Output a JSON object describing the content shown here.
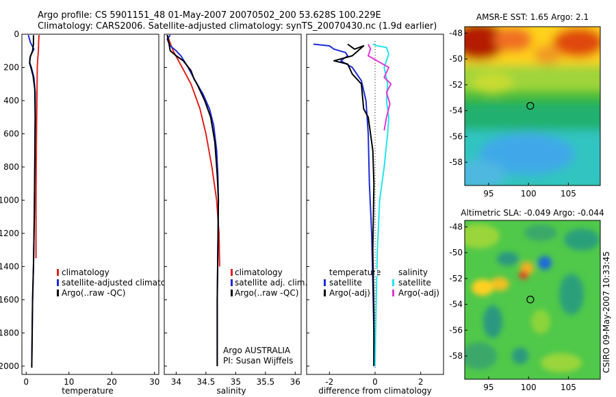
{
  "header": {
    "line1": "Argo profile: CS 5901151_48 01-May-2007 20070502_200 53.628S 100.229E",
    "line2": "Climatology: CARS2006. Satellite-adjusted climatology: synTS_20070430.nc (1.9d earlier)"
  },
  "colors": {
    "climatology": "#e0201a",
    "satellite": "#1a2ad6",
    "argo": "#000000",
    "satellite_salinity": "#22e4ea",
    "argo_adj_salinity": "#e038d8"
  },
  "chart_data": [
    {
      "type": "line",
      "xlabel": "temperature",
      "xlim": [
        -1,
        31
      ],
      "ylim": [
        2050,
        0
      ],
      "xticks": [
        "0",
        "10",
        "20",
        "30"
      ],
      "yticks": [
        "0",
        "200",
        "400",
        "600",
        "800",
        "1000",
        "1200",
        "1400",
        "1600",
        "1800",
        "2000"
      ],
      "legend": [
        "climatology",
        "satellite-adjusted climatology",
        "Argo(..raw -QC)"
      ],
      "series": [
        {
          "name": "climatology",
          "color": "#e0201a",
          "x": [
            3.0,
            2.9,
            2.85,
            2.7,
            2.6,
            2.55,
            2.5,
            2.4,
            2.35,
            2.3,
            2.3,
            2.3
          ],
          "y": [
            5,
            50,
            100,
            150,
            200,
            300,
            400,
            600,
            800,
            1000,
            1200,
            1350
          ]
        },
        {
          "name": "satellite-adjusted climatology",
          "color": "#1a2ad6",
          "x": [
            0.5,
            1.0,
            1.8,
            1.0,
            0.8,
            1.2,
            1.8,
            2.1,
            2.1,
            2.0,
            1.9,
            1.7,
            1.5,
            1.4,
            1.3
          ],
          "y": [
            5,
            50,
            90,
            130,
            170,
            200,
            260,
            350,
            500,
            800,
            1100,
            1400,
            1600,
            1800,
            2000
          ]
        },
        {
          "name": "Argo(..raw -QC)",
          "color": "#000000",
          "x": [
            1.7,
            1.7,
            1.5,
            0.9,
            0.8,
            1.1,
            1.6,
            2.0,
            2.1,
            2.0,
            1.9,
            1.7,
            1.5,
            1.4,
            1.3
          ],
          "y": [
            5,
            60,
            100,
            140,
            175,
            200,
            250,
            330,
            500,
            800,
            1100,
            1400,
            1600,
            1800,
            2010
          ]
        }
      ]
    },
    {
      "type": "line",
      "xlabel": "salinity",
      "xlim": [
        33.8,
        36.1
      ],
      "ylim": [
        2050,
        0
      ],
      "xticks": [
        "34",
        "34.5",
        "35",
        "35.5",
        "36"
      ],
      "legend": [
        "climatology",
        "satellite adj. clim.",
        "Argo(..raw -QC)"
      ],
      "annotation": [
        "Argo AUSTRALIA",
        "PI: Susan Wijffels"
      ],
      "series": [
        {
          "name": "climatology",
          "color": "#e0201a",
          "x": [
            33.85,
            33.95,
            34.1,
            34.25,
            34.4,
            34.5,
            34.6,
            34.68,
            34.72,
            34.73
          ],
          "y": [
            5,
            100,
            200,
            300,
            450,
            600,
            800,
            1000,
            1200,
            1400
          ]
        },
        {
          "name": "satellite adj. clim.",
          "color": "#1a2ad6",
          "x": [
            33.9,
            33.85,
            33.9,
            34.0,
            34.08,
            34.2,
            34.32,
            34.45,
            34.56,
            34.63,
            34.68,
            34.7,
            34.71,
            34.7,
            34.69,
            34.69
          ],
          "y": [
            5,
            30,
            70,
            100,
            130,
            200,
            280,
            360,
            450,
            550,
            700,
            850,
            1000,
            1300,
            1600,
            2000
          ]
        },
        {
          "name": "Argo(..raw -QC)",
          "color": "#000000",
          "x": [
            33.85,
            33.88,
            33.9,
            34.0,
            34.12,
            34.25,
            34.3,
            34.35,
            34.48,
            34.58,
            34.65,
            34.69,
            34.71,
            34.7,
            34.69,
            34.69
          ],
          "y": [
            5,
            60,
            100,
            130,
            160,
            220,
            270,
            300,
            400,
            500,
            650,
            850,
            1000,
            1300,
            1600,
            2000
          ]
        }
      ]
    },
    {
      "type": "line",
      "xlabel": "difference from climatology",
      "xlim": [
        -3,
        3
      ],
      "ylim": [
        2050,
        0
      ],
      "xticks": [
        "-2",
        "0",
        "2"
      ],
      "legend_temperature": {
        "heading": "temperature",
        "items": [
          "satellite",
          "Argo(-adj)"
        ]
      },
      "legend_salinity": {
        "heading": "salinity",
        "items": [
          "satellite",
          "Argo(-adj)"
        ]
      },
      "series": [
        {
          "name": "temperature satellite",
          "color": "#1a2ad6",
          "x": [
            -2.7,
            -2.0,
            -1.8,
            -1.3,
            -1.2,
            -1.5,
            -1.0,
            -0.6,
            -0.4,
            -0.3,
            -0.25,
            -0.15,
            -0.1,
            -0.05,
            -0.05
          ],
          "y": [
            60,
            70,
            90,
            110,
            130,
            160,
            200,
            280,
            400,
            600,
            900,
            1200,
            1500,
            1800,
            2000
          ]
        },
        {
          "name": "temperature Argo(-adj)",
          "color": "#000000",
          "x": [
            -1.2,
            -0.9,
            -0.5,
            -1.0,
            -1.8,
            -1.2,
            -1.0,
            -0.6,
            -0.5,
            -0.3,
            -0.1,
            -0.05,
            -0.1,
            -0.05,
            -0.05
          ],
          "y": [
            60,
            90,
            70,
            130,
            160,
            180,
            240,
            300,
            450,
            500,
            700,
            900,
            1300,
            1700,
            2000
          ]
        },
        {
          "name": "salinity satellite",
          "color": "#22e4ea",
          "x": [
            -0.1,
            0.1,
            0.5,
            0.6,
            0.4,
            0.55,
            0.5,
            0.6,
            0.55,
            0.4,
            0.2,
            0.1,
            0.05,
            0.02,
            0.0
          ],
          "y": [
            60,
            70,
            80,
            120,
            200,
            300,
            400,
            500,
            600,
            800,
            1000,
            1300,
            1600,
            1800,
            2000
          ]
        },
        {
          "name": "salinity Argo(-adj)",
          "color": "#e038d8",
          "x": [
            -0.3,
            -0.2,
            -0.3,
            0.6,
            0.4,
            0.7,
            0.5,
            0.65,
            0.5,
            0.4
          ],
          "y": [
            60,
            90,
            130,
            200,
            260,
            300,
            350,
            420,
            500,
            580
          ]
        }
      ]
    },
    {
      "type": "heatmap",
      "title": "AMSR-E SST: 1.65 Argo: 2.1",
      "xlim": [
        92,
        109
      ],
      "ylim": [
        -59.8,
        -47.5
      ],
      "xticks": [
        "95",
        "100",
        "105"
      ],
      "yticks": [
        "-48",
        "-50",
        "-52",
        "-54",
        "-56",
        "-58"
      ],
      "marker": {
        "lon": 100.229,
        "lat": -53.628
      }
    },
    {
      "type": "heatmap",
      "title": "Altimetric SLA: -0.049 Argo: -0.044",
      "xlim": [
        92,
        109
      ],
      "ylim": [
        -59.8,
        -47.5
      ],
      "xticks": [
        "95",
        "100",
        "105"
      ],
      "yticks": [
        "-48",
        "-50",
        "-52",
        "-54",
        "-56",
        "-58"
      ],
      "marker": {
        "lon": 100.229,
        "lat": -53.628
      }
    }
  ],
  "footer_note": "CSIRO 09-May-2007 10:33:45"
}
